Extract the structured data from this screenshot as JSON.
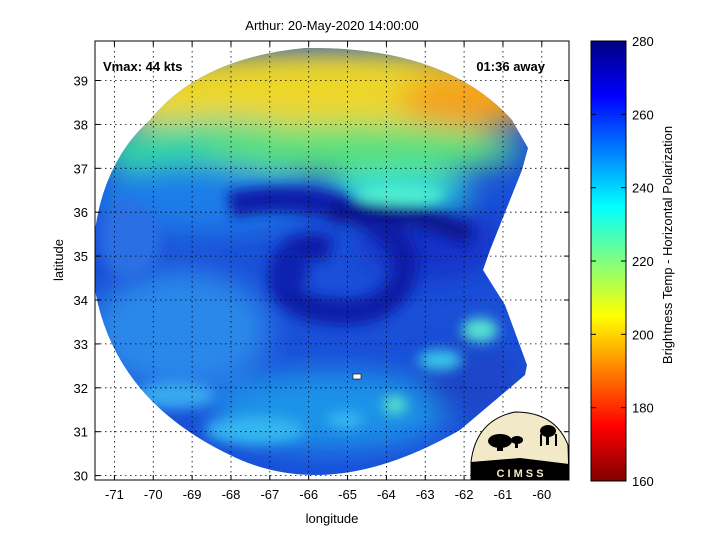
{
  "chart_data": {
    "type": "heatmap",
    "title": "Arthur: 20-May-2020 14:00:00",
    "xlabel": "longitude",
    "ylabel": "latitude",
    "xlim": [
      -71.5,
      -59.3
    ],
    "ylim": [
      29.9,
      39.9
    ],
    "x_ticks": [
      -71,
      -70,
      -69,
      -68,
      -67,
      -66,
      -65,
      -64,
      -63,
      -62,
      -61,
      -60
    ],
    "y_ticks": [
      30,
      31,
      32,
      33,
      34,
      35,
      36,
      37,
      38,
      39
    ],
    "grid": true,
    "annotations": {
      "vmax": "Vmax: 44 kts",
      "time_offset": "01:36 away"
    },
    "colorbar": {
      "label": "Brightness Temp - Horizontal Polarization",
      "range": [
        160,
        280
      ],
      "ticks": [
        160,
        180,
        200,
        220,
        240,
        260,
        280
      ],
      "colormap": "jet"
    },
    "storm_center": {
      "lon": -66.4,
      "lat": 34.9
    },
    "fields": [
      {
        "name": "cold-north-edge",
        "lon": -66.5,
        "lat": 38.9,
        "value": 205
      },
      {
        "name": "cold-northeast",
        "lon": -63.2,
        "lat": 38.4,
        "value": 196
      },
      {
        "name": "northwest-band",
        "lon": -69.5,
        "lat": 38.0,
        "value": 228
      },
      {
        "name": "north-central-band",
        "lon": -65.5,
        "lat": 37.2,
        "value": 240
      },
      {
        "name": "rainband-east",
        "lon": -63.5,
        "lat": 36.5,
        "value": 240
      },
      {
        "name": "warm-core-ring",
        "lon": -66.0,
        "lat": 35.6,
        "value": 268
      },
      {
        "name": "eastern-warm-band",
        "lon": -63.2,
        "lat": 34.8,
        "value": 268
      },
      {
        "name": "southwest-region",
        "lon": -69.5,
        "lat": 33.0,
        "value": 250
      },
      {
        "name": "south-central",
        "lon": -65.5,
        "lat": 31.8,
        "value": 252
      },
      {
        "name": "southeast-patches",
        "lon": -61.8,
        "lat": 32.5,
        "value": 246
      }
    ]
  },
  "logo": {
    "text": "C I M S S"
  }
}
